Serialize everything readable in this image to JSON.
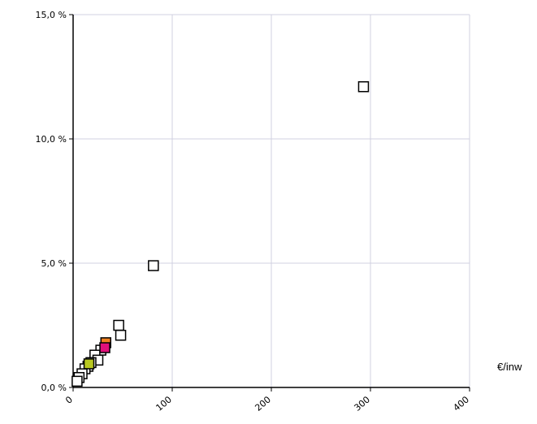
{
  "chart_data": {
    "type": "scatter",
    "title": "",
    "xlabel": "€/inw",
    "ylabel": "",
    "xlim": [
      0,
      400
    ],
    "ylim": [
      0,
      15
    ],
    "x_ticks": [
      0,
      100,
      200,
      300,
      400
    ],
    "y_ticks": [
      0,
      5,
      10,
      15
    ],
    "x_tick_labels": [
      "0",
      "100",
      "200",
      "300",
      "400"
    ],
    "y_tick_labels": [
      "0,0 %",
      "5,0 %",
      "10,0 %",
      "15,0 %"
    ],
    "grid": true,
    "marker": "square",
    "colors": {
      "default": "#ffffff",
      "stroke": "#000000",
      "grid": "#d0d0e0",
      "highlight_orange": "#f08020",
      "highlight_pink": "#e0107a",
      "highlight_green": "#b8c820"
    },
    "points": [
      {
        "x": 293,
        "y": 12.1,
        "color": "default"
      },
      {
        "x": 81,
        "y": 4.9,
        "color": "default"
      },
      {
        "x": 46,
        "y": 2.5,
        "color": "default"
      },
      {
        "x": 48,
        "y": 2.1,
        "color": "default"
      },
      {
        "x": 33,
        "y": 1.8,
        "color": "highlight_orange"
      },
      {
        "x": 28,
        "y": 1.5,
        "color": "default"
      },
      {
        "x": 22,
        "y": 1.3,
        "color": "default"
      },
      {
        "x": 25,
        "y": 1.1,
        "color": "default"
      },
      {
        "x": 18,
        "y": 1.0,
        "color": "default"
      },
      {
        "x": 15,
        "y": 0.85,
        "color": "default"
      },
      {
        "x": 12,
        "y": 0.75,
        "color": "default"
      },
      {
        "x": 9,
        "y": 0.55,
        "color": "default"
      },
      {
        "x": 6,
        "y": 0.4,
        "color": "default"
      },
      {
        "x": 4,
        "y": 0.25,
        "color": "default"
      },
      {
        "x": 32,
        "y": 1.6,
        "color": "highlight_pink"
      },
      {
        "x": 16,
        "y": 0.95,
        "color": "highlight_green"
      }
    ]
  }
}
